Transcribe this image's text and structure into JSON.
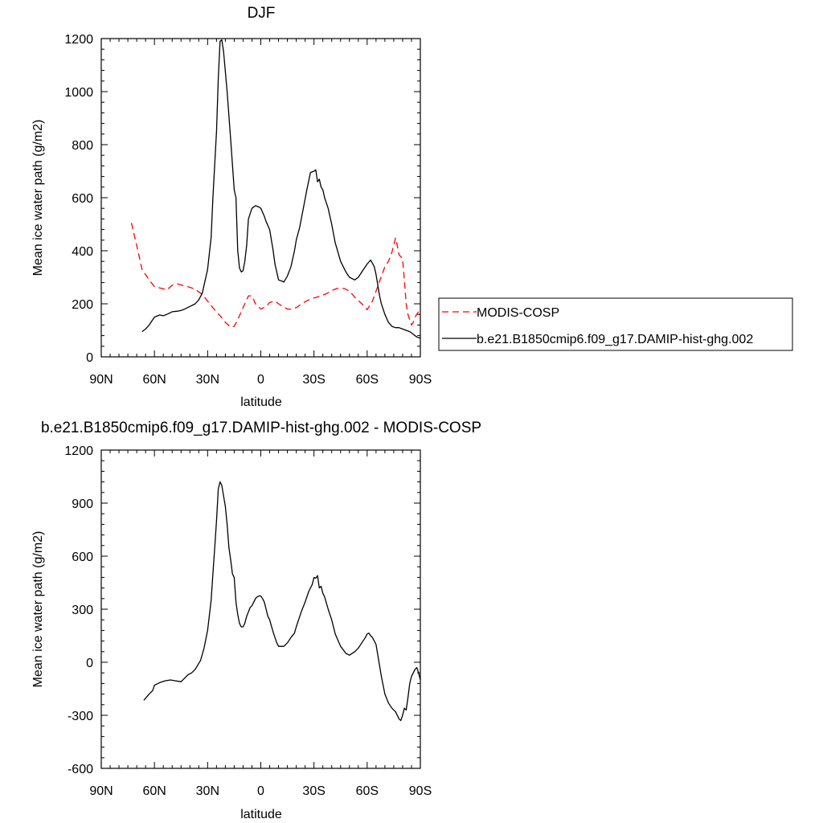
{
  "chart_data": [
    {
      "type": "line",
      "title": "DJF",
      "xlabel": "latitude",
      "ylabel": "Mean ice water path (g/m2)",
      "xlim": [
        90,
        -90
      ],
      "ylim": [
        0,
        1200
      ],
      "xtick_values": [
        90,
        60,
        30,
        0,
        -30,
        -60,
        -90
      ],
      "xtick_labels": [
        "90N",
        "60N",
        "30N",
        "0",
        "30S",
        "60S",
        "90S"
      ],
      "ytick_values": [
        0,
        200,
        400,
        600,
        800,
        1000,
        1200
      ],
      "ytick_labels": [
        "0",
        "200",
        "400",
        "600",
        "800",
        "1000",
        "1200"
      ],
      "grid": false,
      "legend": "right",
      "series": [
        {
          "name": "MODIS-COSP",
          "color": "#ff0000",
          "dash": "dashed",
          "x": [
            73,
            70,
            67,
            63,
            60,
            57,
            53,
            50,
            47,
            43,
            40,
            37,
            33,
            30,
            27,
            23,
            20,
            17,
            15,
            13,
            10,
            7,
            5,
            3,
            0,
            -3,
            -5,
            -8,
            -10,
            -13,
            -15,
            -17,
            -20,
            -23,
            -27,
            -30,
            -33,
            -37,
            -40,
            -43,
            -47,
            -50,
            -53,
            -57,
            -60,
            -63,
            -67,
            -70,
            -72,
            -74,
            -76,
            -77,
            -78,
            -80,
            -81,
            -82,
            -83,
            -85,
            -86,
            -87,
            -88,
            -89,
            -90
          ],
          "y": [
            505,
            420,
            330,
            290,
            265,
            260,
            252,
            270,
            275,
            268,
            262,
            255,
            235,
            210,
            185,
            155,
            130,
            112,
            115,
            140,
            185,
            230,
            230,
            200,
            180,
            190,
            205,
            210,
            200,
            188,
            180,
            180,
            185,
            200,
            215,
            222,
            228,
            238,
            250,
            258,
            258,
            248,
            225,
            200,
            178,
            210,
            285,
            340,
            360,
            395,
            448,
            420,
            385,
            370,
            290,
            200,
            160,
            120,
            130,
            150,
            160,
            170,
            175
          ]
        },
        {
          "name": "b.e21.B1850cmip6.f09_g17.DAMIP-hist-ghg.002",
          "color": "#000000",
          "dash": "solid",
          "x": [
            67,
            65,
            63,
            60,
            57,
            55,
            53,
            50,
            47,
            45,
            43,
            40,
            37,
            35,
            33,
            30,
            28,
            27,
            25,
            24,
            23,
            22,
            21,
            19,
            17,
            15,
            14,
            13,
            12,
            11,
            10,
            9,
            8,
            7,
            5,
            3,
            1,
            0,
            -2,
            -3,
            -5,
            -7,
            -8,
            -10,
            -12,
            -13,
            -15,
            -17,
            -19,
            -20,
            -22,
            -24,
            -26,
            -28,
            -30,
            -31,
            -32,
            -33,
            -34,
            -35,
            -36,
            -38,
            -40,
            -42,
            -45,
            -48,
            -50,
            -53,
            -55,
            -57,
            -60,
            -62,
            -64,
            -65,
            -66,
            -67,
            -68,
            -70,
            -72,
            -74,
            -76,
            -78,
            -80,
            -82,
            -84,
            -86,
            -88,
            -90
          ],
          "y": [
            95,
            105,
            120,
            150,
            158,
            155,
            160,
            170,
            172,
            175,
            180,
            190,
            200,
            215,
            240,
            330,
            450,
            600,
            850,
            1050,
            1190,
            1195,
            1150,
            1000,
            820,
            630,
            600,
            400,
            335,
            320,
            325,
            360,
            420,
            520,
            560,
            570,
            565,
            560,
            530,
            510,
            480,
            400,
            350,
            290,
            285,
            282,
            305,
            340,
            400,
            440,
            490,
            560,
            630,
            695,
            700,
            705,
            660,
            670,
            640,
            630,
            600,
            560,
            500,
            430,
            360,
            320,
            300,
            290,
            300,
            320,
            350,
            365,
            340,
            310,
            270,
            230,
            200,
            160,
            130,
            115,
            110,
            110,
            105,
            100,
            95,
            85,
            75,
            70
          ]
        }
      ]
    },
    {
      "type": "line",
      "title": "b.e21.B1850cmip6.f09_g17.DAMIP-hist-ghg.002 - MODIS-COSP",
      "xlabel": "latitude",
      "ylabel": "Mean ice water path (g/m2)",
      "xlim": [
        90,
        -90
      ],
      "ylim": [
        -600,
        1200
      ],
      "xtick_values": [
        90,
        60,
        30,
        0,
        -30,
        -60,
        -90
      ],
      "xtick_labels": [
        "90N",
        "60N",
        "30N",
        "0",
        "30S",
        "60S",
        "90S"
      ],
      "ytick_values": [
        -600,
        -300,
        0,
        300,
        600,
        900,
        1200
      ],
      "ytick_labels": [
        "-600",
        "-300",
        "0",
        "300",
        "600",
        "900",
        "1200"
      ],
      "grid": false,
      "legend": "none",
      "series": [
        {
          "color": "#000000",
          "dash": "solid",
          "x": [
            66,
            63,
            61,
            60,
            57,
            54,
            51,
            48,
            45,
            43,
            41,
            39,
            37,
            34,
            32,
            30,
            28,
            27,
            26,
            25,
            24,
            23,
            22,
            21,
            20,
            19,
            18,
            17,
            16,
            15,
            14,
            13,
            12,
            11,
            10,
            9,
            8,
            6,
            5,
            4,
            3,
            2,
            1,
            0,
            -1,
            -2,
            -3,
            -4,
            -5,
            -7,
            -8,
            -9,
            -10,
            -13,
            -15,
            -17,
            -19,
            -20,
            -22,
            -23,
            -25,
            -27,
            -29,
            -30,
            -31,
            -32,
            -33,
            -34,
            -35,
            -36,
            -38,
            -40,
            -42,
            -45,
            -48,
            -50,
            -53,
            -55,
            -57,
            -59,
            -60,
            -61,
            -62,
            -63,
            -64,
            -65,
            -66,
            -67,
            -68,
            -70,
            -72,
            -74,
            -76,
            -78,
            -79,
            -80,
            -81,
            -82,
            -83,
            -84,
            -85,
            -86,
            -87,
            -88,
            -89,
            -90
          ],
          "y": [
            -215,
            -180,
            -160,
            -130,
            -115,
            -105,
            -100,
            -105,
            -110,
            -90,
            -70,
            -60,
            -40,
            10,
            80,
            180,
            350,
            500,
            650,
            800,
            980,
            1020,
            1000,
            940,
            880,
            780,
            650,
            580,
            500,
            480,
            340,
            270,
            220,
            200,
            200,
            220,
            260,
            310,
            320,
            340,
            360,
            370,
            375,
            375,
            360,
            340,
            300,
            260,
            240,
            170,
            140,
            110,
            90,
            90,
            110,
            140,
            165,
            200,
            260,
            290,
            340,
            400,
            440,
            480,
            475,
            490,
            420,
            430,
            390,
            370,
            300,
            240,
            160,
            90,
            50,
            40,
            60,
            80,
            110,
            140,
            160,
            165,
            150,
            140,
            120,
            100,
            40,
            -20,
            -80,
            -180,
            -230,
            -260,
            -280,
            -320,
            -330,
            -300,
            -260,
            -270,
            -200,
            -120,
            -80,
            -60,
            -40,
            -30,
            -60,
            -100
          ]
        }
      ]
    }
  ]
}
